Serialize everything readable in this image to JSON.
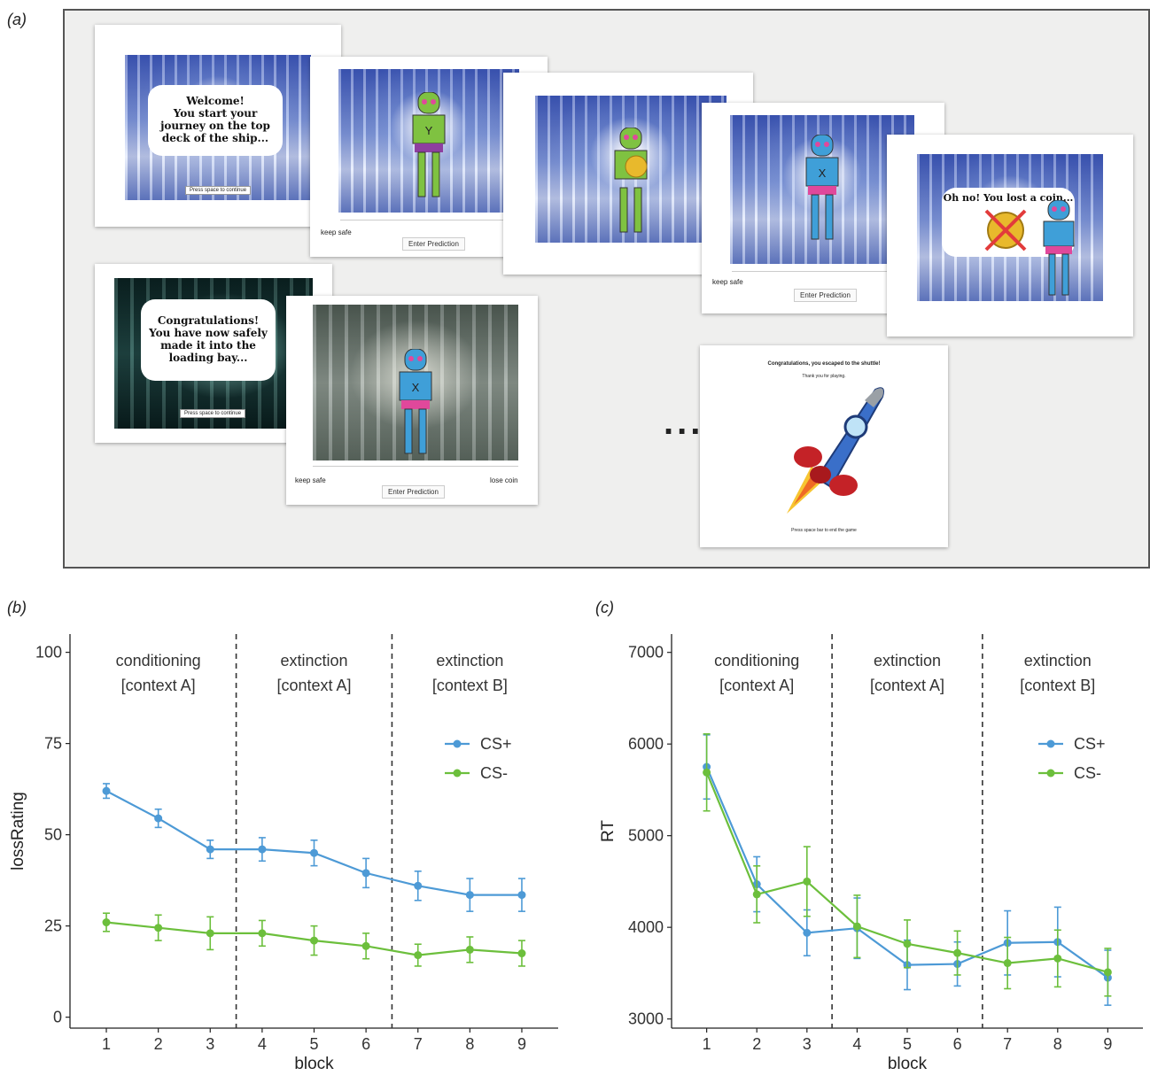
{
  "panels": {
    "a_label": "(a)",
    "b_label": "(b)",
    "c_label": "(c)"
  },
  "screens": {
    "welcome_text": "Welcome!\nYou start your\njourney on the top\ndeck of the ship...",
    "welcome_button": "Press space to continue",
    "robot_y_label": "Y",
    "robot_x_label": "X",
    "keep_safe": "keep safe",
    "enter_prediction": "Enter Prediction",
    "lose_coin": "lose coin",
    "lost_coin_text": "Oh no! You lost a coin...",
    "congrats_text": "Congratulations!\nYou have now safely\nmade it into the\nloading bay...",
    "congrats_button": "Press space to continue",
    "shuttle_title": "Congratulations, you escaped to the shuttle!",
    "shuttle_subtitle": "Thank you for playing.",
    "shuttle_footer": "Press space bar to end the game",
    "ellipsis": "..."
  },
  "colors": {
    "cs_plus": "#4d9ad6",
    "cs_minus": "#6cbf3c",
    "axis": "#222222"
  },
  "chart_data": [
    {
      "type": "line",
      "panel": "(b)",
      "xlabel": "block",
      "ylabel": "lossRating",
      "x": [
        1,
        2,
        3,
        4,
        5,
        6,
        7,
        8,
        9
      ],
      "ylim": [
        -3,
        105
      ],
      "yticks": [
        0,
        25,
        50,
        75,
        100
      ],
      "grid": false,
      "legend_position": "top-right",
      "phase_boundaries": [
        3.5,
        6.5
      ],
      "phases": [
        {
          "line1": "conditioning",
          "line2": "[context A]"
        },
        {
          "line1": "extinction",
          "line2": "[context A]"
        },
        {
          "line1": "extinction",
          "line2": "[context B]"
        }
      ],
      "series": [
        {
          "name": "CS+",
          "color": "#4d9ad6",
          "values": [
            62,
            54.5,
            46,
            46,
            45,
            39.5,
            36,
            33.5,
            33.5
          ],
          "errors": [
            2,
            2.5,
            2.5,
            3.2,
            3.5,
            4,
            4,
            4.5,
            4.5
          ]
        },
        {
          "name": "CS-",
          "color": "#6cbf3c",
          "values": [
            26,
            24.5,
            23,
            23,
            21,
            19.5,
            17,
            18.5,
            17.5
          ],
          "errors": [
            2.5,
            3.5,
            4.5,
            3.5,
            4,
            3.5,
            3,
            3.5,
            3.5
          ]
        }
      ]
    },
    {
      "type": "line",
      "panel": "(c)",
      "xlabel": "block",
      "ylabel": "RT",
      "x": [
        1,
        2,
        3,
        4,
        5,
        6,
        7,
        8,
        9
      ],
      "ylim": [
        2900,
        7200
      ],
      "yticks": [
        3000,
        4000,
        5000,
        6000,
        7000
      ],
      "grid": false,
      "legend_position": "top-right",
      "phase_boundaries": [
        3.5,
        6.5
      ],
      "phases": [
        {
          "line1": "conditioning",
          "line2": "[context A]"
        },
        {
          "line1": "extinction",
          "line2": "[context A]"
        },
        {
          "line1": "extinction",
          "line2": "[context B]"
        }
      ],
      "series": [
        {
          "name": "CS+",
          "color": "#4d9ad6",
          "values": [
            5750,
            4470,
            3940,
            3990,
            3590,
            3600,
            3830,
            3840,
            3450
          ],
          "errors": [
            350,
            300,
            250,
            330,
            270,
            240,
            350,
            380,
            300
          ]
        },
        {
          "name": "CS-",
          "color": "#6cbf3c",
          "values": [
            5690,
            4360,
            4500,
            4010,
            3820,
            3720,
            3610,
            3660,
            3510
          ],
          "errors": [
            420,
            310,
            380,
            340,
            260,
            240,
            280,
            310,
            260
          ]
        }
      ]
    }
  ]
}
